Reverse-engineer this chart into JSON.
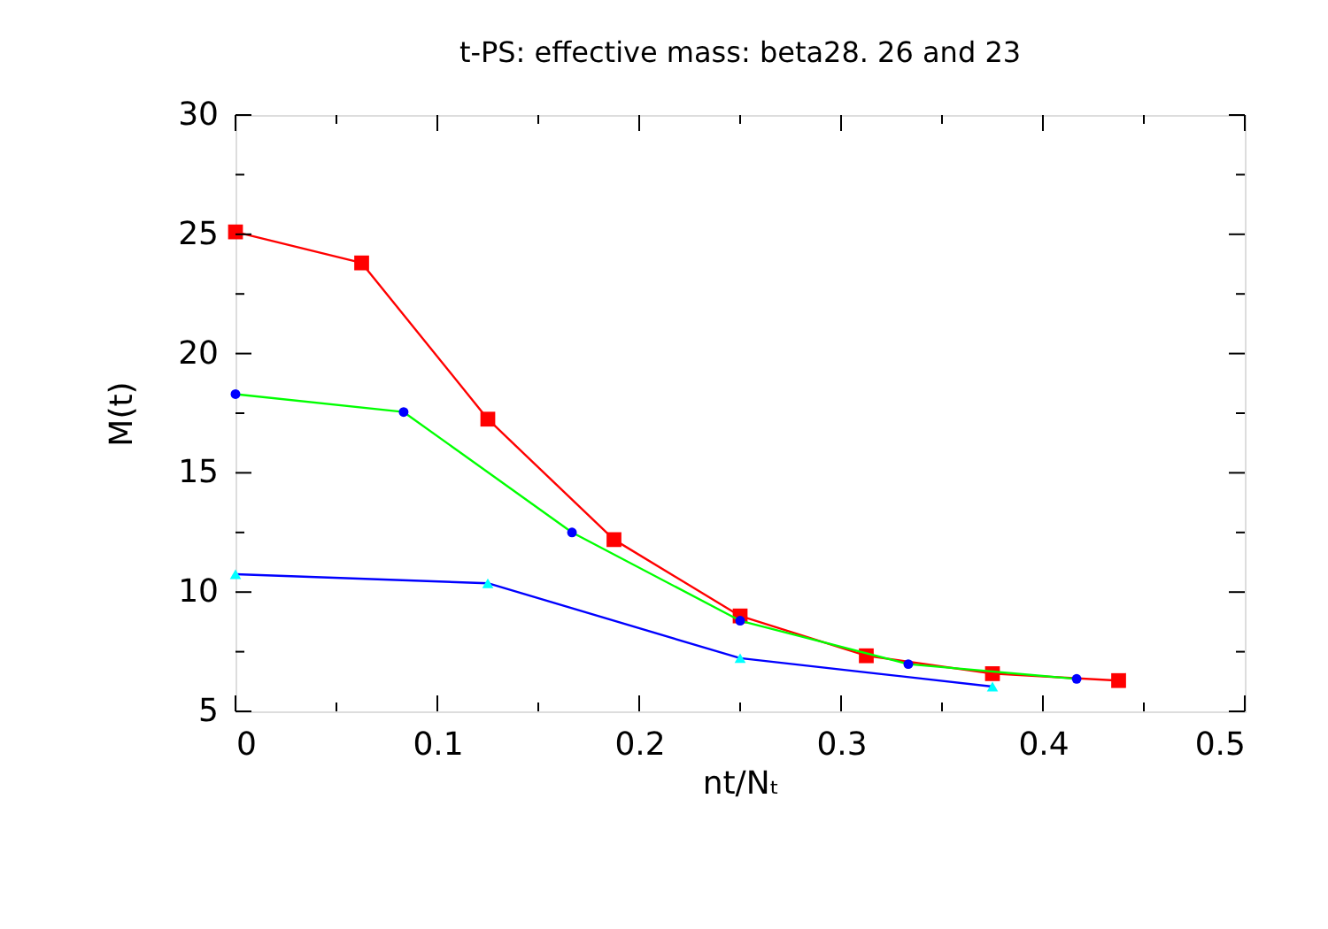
{
  "chart_data": {
    "type": "line",
    "title": "t-PS: effective mass: beta28. 26 and 23",
    "xlabel": "nt/Nₜ",
    "ylabel": "M(t)",
    "xlim": [
      0,
      0.5
    ],
    "ylim": [
      5,
      30
    ],
    "xticks": [
      0,
      {
        "value": 0.05,
        "label": null
      },
      0.1,
      {
        "value": 0.15,
        "label": null
      },
      0.2,
      {
        "value": 0.25,
        "label": null
      },
      0.3,
      {
        "value": 0.35,
        "label": null
      },
      0.4,
      {
        "value": 0.45,
        "label": null
      },
      0.5
    ],
    "yticks": [
      5,
      {
        "value": 7.5,
        "label": null
      },
      10,
      {
        "value": 12.5,
        "label": null
      },
      15,
      {
        "value": 17.5,
        "label": null
      },
      20,
      {
        "value": 22.5,
        "label": null
      },
      25,
      {
        "value": 27.5,
        "label": null
      },
      30
    ],
    "grid": false,
    "line_style": "solid",
    "series": [
      {
        "color": "#ff0000",
        "marker": "square",
        "colors": [
          "#ff0000",
          "#ff0000",
          "#ff0000",
          "#ff0000",
          "#ff0000",
          "#ff0000",
          "#ff0000",
          "#ff0000"
        ],
        "x": [
          0,
          0.0625,
          0.125,
          0.1875,
          0.25,
          0.3125,
          0.375,
          0.4375
        ],
        "values": [
          25.1,
          23.8,
          17.25,
          12.2,
          9.0,
          7.33,
          6.58,
          6.29
        ]
      },
      {
        "color": "#00ff00",
        "marker": "circle",
        "colors": [
          "#0000ff",
          "#0000ff",
          "#0000ff",
          "#0000ff",
          "#0000ff",
          "#0000ff"
        ],
        "x": [
          0,
          0.0833,
          0.1667,
          0.25,
          0.3333,
          0.4167
        ],
        "values": [
          18.3,
          17.55,
          12.5,
          8.8,
          6.98,
          6.36
        ]
      },
      {
        "color": "#0000ff",
        "marker": "triangle",
        "colors": [
          "#00ffff",
          "#00ffff",
          "#00ffff",
          "#00ffff"
        ],
        "x": [
          0,
          0.125,
          0.25,
          0.375
        ],
        "values": [
          10.75,
          10.37,
          7.23,
          6.04
        ]
      }
    ]
  }
}
